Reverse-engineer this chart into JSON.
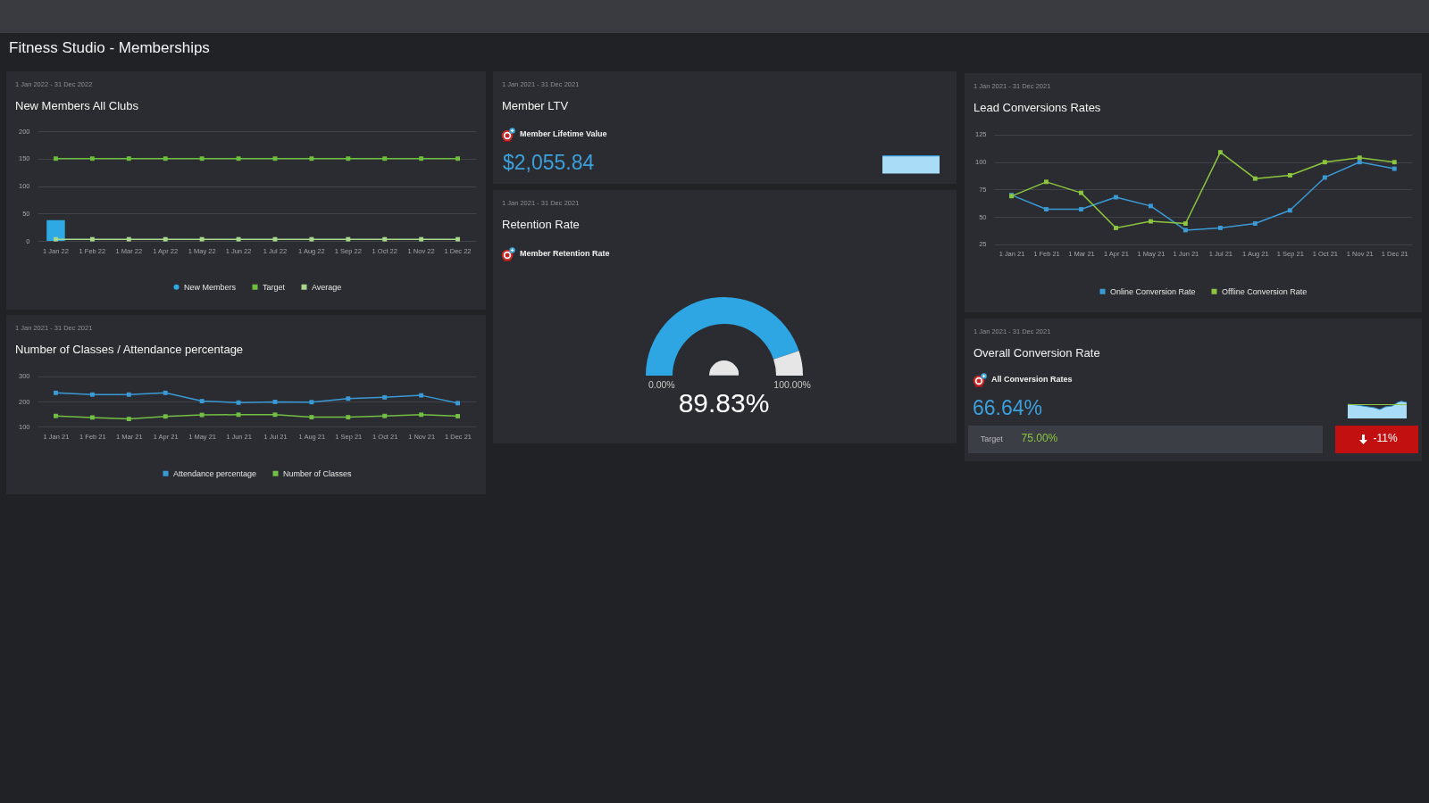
{
  "chart_data": [
    {
      "type": "other",
      "title": "Fitness Studio - Memberships"
    },
    {
      "type": "bar",
      "subtitle": "1 Jan 2022 - 31 Dec 2022",
      "title": "New Members All Clubs",
      "categories": [
        "1 Jan 22",
        "1 Feb 22",
        "1 Mar 22",
        "1 Apr 22",
        "1 May 22",
        "1 Jun 22",
        "1 Jul 22",
        "1 Aug 22",
        "1 Sep 22",
        "1 Oct 22",
        "1 Nov 22",
        "1 Dec 22"
      ],
      "series": [
        {
          "name": "New Members",
          "type": "bar",
          "color": "#2fa9e4",
          "values": [
            38,
            null,
            null,
            null,
            null,
            null,
            null,
            null,
            null,
            null,
            null,
            null
          ]
        },
        {
          "name": "Target",
          "type": "line",
          "color": "#6cbf3b",
          "values": [
            150,
            150,
            150,
            150,
            150,
            150,
            150,
            150,
            150,
            150,
            150,
            150
          ]
        },
        {
          "name": "Average",
          "type": "line",
          "color": "#a8d88c",
          "values": [
            3,
            3,
            3,
            3,
            3,
            3,
            3,
            3,
            3,
            3,
            3,
            3
          ]
        }
      ],
      "ylim": [
        0,
        200
      ],
      "yticks": [
        0,
        50,
        100,
        150,
        200
      ],
      "grid": "y",
      "legend": "bottom",
      "marker": "square"
    },
    {
      "type": "other",
      "subtitle": "1 Jan 2021 - 31 Dec 2021",
      "title": "Member LTV",
      "annotations": [
        "Member Lifetime Value",
        "$2,055.84"
      ]
    },
    {
      "type": "line",
      "subtitle": "1 Jan 2021 - 31 Dec 2021",
      "title": "Lead Conversions Rates",
      "categories": [
        "1 Jan 21",
        "1 Feb 21",
        "1 Mar 21",
        "1 Apr 21",
        "1 May 21",
        "1 Jun 21",
        "1 Jul 21",
        "1 Aug 21",
        "1 Sep 21",
        "1 Oct 21",
        "1 Nov 21",
        "1 Dec 21"
      ],
      "series": [
        {
          "name": "Online Conversion Rate",
          "color": "#3a9ad6",
          "values": [
            70,
            57,
            57,
            68,
            60,
            38,
            40,
            44,
            56,
            86,
            100,
            94
          ]
        },
        {
          "name": "Offline Conversion Rate",
          "color": "#8cc63f",
          "values": [
            69,
            82,
            72,
            40,
            46,
            44,
            109,
            85,
            88,
            100,
            104,
            100
          ]
        }
      ],
      "ylim": [
        25,
        125
      ],
      "yticks": [
        25,
        50,
        75,
        100,
        125
      ],
      "grid": "y",
      "legend": "bottom",
      "marker": "square"
    },
    {
      "type": "donut",
      "subtitle": "1 Jan 2021 - 31 Dec 2021",
      "title": "Retention Rate",
      "annotations": [
        "Member Retention Rate",
        "0.00%",
        "100.00%",
        "89.83%"
      ],
      "categories": [
        null,
        null
      ],
      "values": [
        89.83,
        10.17
      ],
      "colors": [
        "#2ea6e3",
        "#e6e6e6"
      ]
    },
    {
      "type": "line",
      "subtitle": "1 Jan 2021 - 31 Dec 2021",
      "title": "Number of Classes / Attendance percentage",
      "categories": [
        "1 Jan 21",
        "1 Feb 21",
        "1 Mar 21",
        "1 Apr 21",
        "1 May 21",
        "1 Jun 21",
        "1 Jul 21",
        "1 Aug 21",
        "1 Sep 21",
        "1 Oct 21",
        "1 Nov 21",
        "1 Dec 21"
      ],
      "series": [
        {
          "name": "Attendance percentage",
          "color": "#3a9ad6",
          "values": [
            235,
            228,
            228,
            235,
            202,
            196,
            199,
            198,
            212,
            217,
            225,
            194
          ]
        },
        {
          "name": "Number of Classes",
          "color": "#72bf44",
          "values": [
            143,
            137,
            131,
            141,
            147,
            148,
            148,
            138,
            138,
            143,
            148,
            142
          ]
        }
      ],
      "ylim": [
        100,
        300
      ],
      "yticks": [
        100,
        200,
        300
      ],
      "grid": "y",
      "legend": "bottom",
      "marker": "square"
    },
    {
      "type": "other",
      "subtitle": "1 Jan 2021 - 31 Dec 2021",
      "title": "Overall Conversion Rate",
      "annotations": [
        "All Conversion Rates",
        "66.64%",
        "Target",
        "75.00%",
        "-11%"
      ]
    }
  ]
}
